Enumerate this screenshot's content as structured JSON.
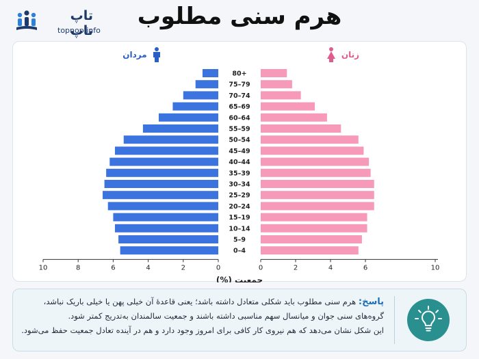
{
  "logo": {
    "name": "تاپ ناپ",
    "url": "topnop.info"
  },
  "title": "هرم سنی مطلوب",
  "legend": {
    "men": "مردان",
    "women": "زنان"
  },
  "colors": {
    "men": "#3b73df",
    "women": "#f79ab9",
    "men_label": "#2a5fc4",
    "women_label": "#e05c8e",
    "teal": "#2a8f8f"
  },
  "chart_data": {
    "type": "bar",
    "subtype": "population-pyramid",
    "categories": [
      "80+",
      "75–79",
      "70–74",
      "65–69",
      "60–64",
      "55–59",
      "50–54",
      "45–49",
      "40–44",
      "35–39",
      "30–34",
      "25–29",
      "20–24",
      "15–19",
      "10–14",
      "5–9",
      "0–4"
    ],
    "series": [
      {
        "name": "مردان",
        "values": [
          0.9,
          1.3,
          2.0,
          2.6,
          3.4,
          4.3,
          5.4,
          5.9,
          6.2,
          6.4,
          6.5,
          6.6,
          6.3,
          6.0,
          5.9,
          5.7,
          5.6
        ]
      },
      {
        "name": "زنان",
        "values": [
          1.5,
          1.8,
          2.3,
          3.1,
          3.8,
          4.6,
          5.6,
          5.9,
          6.2,
          6.3,
          6.5,
          6.5,
          6.5,
          6.1,
          6.1,
          5.8,
          5.6
        ]
      }
    ],
    "xlabel": "جمعیت (%)",
    "xlim": [
      0,
      10
    ],
    "xticks_men": [
      "10",
      "8",
      "6",
      "4",
      "2",
      "0"
    ],
    "xticks_women": [
      "0",
      "2",
      "4",
      "6",
      "10"
    ],
    "grid": false,
    "legend_position": "top"
  },
  "answer": {
    "label": "پاسخ:",
    "line1": "هرم سنی مطلوب باید شکلی متعادل داشته باشد؛ یعنی قاعدهٔ آن خیلی پهن یا خیلی باریک نباشد،",
    "line2": "گروه‌های سنی جوان و میانسال سهم مناسبی داشته باشند و جمعیت سالمندان به‌تدریج کمتر شود.",
    "line3": "این شکل نشان می‌دهد که هم نیروی کار کافی برای امروز وجود دارد و هم در آینده تعادل جمعیت حفظ می‌شود."
  }
}
